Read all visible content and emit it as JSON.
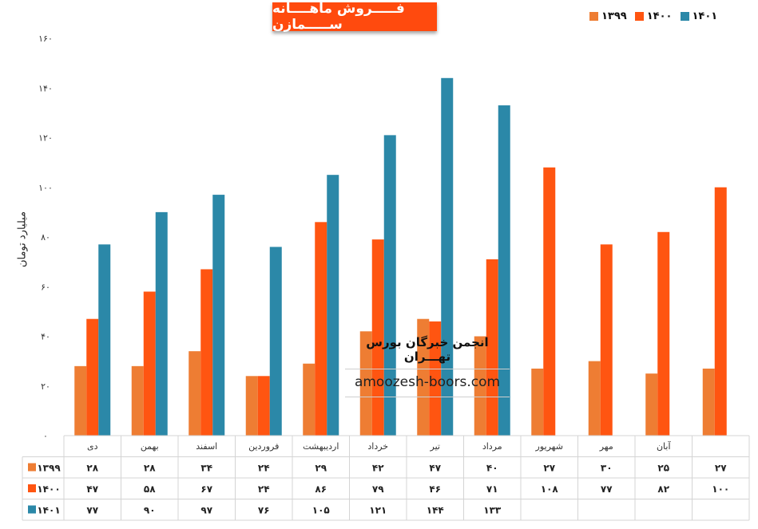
{
  "header": {
    "title": "فـــــروش ماهــــانه ســـــمازن"
  },
  "legend": [
    {
      "label": "۱۳۹۹",
      "color": "#ee7d33"
    },
    {
      "label": "۱۴۰۰",
      "color": "#ff5511"
    },
    {
      "label": "۱۴۰۱",
      "color": "#2b88a8"
    }
  ],
  "watermark": {
    "line1": "انجمن خبرگان بورس تهـــران",
    "line2": "amoozesh-boors.com"
  },
  "chart_data": {
    "type": "bar",
    "ylabel": "میلیارد تومان",
    "ylim": [
      0,
      160
    ],
    "yticks": [
      "۰",
      "۲۰",
      "۴۰",
      "۶۰",
      "۸۰",
      "۱۰۰",
      "۱۲۰",
      "۱۴۰",
      "۱۶۰"
    ],
    "categories": [
      "دی",
      "بهمن",
      "اسفند",
      "فروردین",
      "اردیبهشت",
      "خرداد",
      "تیر",
      "مرداد",
      "شهریور",
      "مهر",
      "آبان",
      ""
    ],
    "series": [
      {
        "name": "۱۳۹۹",
        "color": "#ee7d33",
        "values": [
          28,
          28,
          34,
          24,
          29,
          42,
          47,
          40,
          27,
          30,
          25,
          27
        ]
      },
      {
        "name": "۱۴۰۰",
        "color": "#ff5511",
        "values": [
          47,
          58,
          67,
          24,
          86,
          79,
          46,
          71,
          108,
          77,
          82,
          100
        ]
      },
      {
        "name": "۱۴۰۱",
        "color": "#2b88a8",
        "values": [
          77,
          90,
          97,
          76,
          105,
          121,
          144,
          133,
          null,
          null,
          null,
          null
        ]
      }
    ],
    "table": [
      [
        "۲۸",
        "۲۸",
        "۳۴",
        "۲۴",
        "۲۹",
        "۴۲",
        "۴۷",
        "۴۰",
        "۲۷",
        "۳۰",
        "۲۵",
        "۲۷"
      ],
      [
        "۴۷",
        "۵۸",
        "۶۷",
        "۲۴",
        "۸۶",
        "۷۹",
        "۴۶",
        "۷۱",
        "۱۰۸",
        "۷۷",
        "۸۲",
        "۱۰۰"
      ],
      [
        "۷۷",
        "۹۰",
        "۹۷",
        "۷۶",
        "۱۰۵",
        "۱۲۱",
        "۱۴۴",
        "۱۳۳",
        "",
        "",
        "",
        ""
      ]
    ]
  }
}
